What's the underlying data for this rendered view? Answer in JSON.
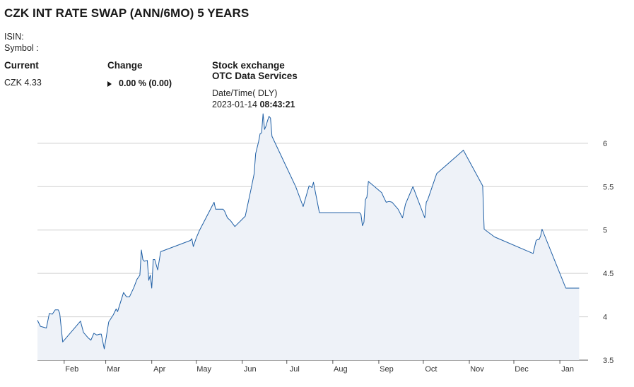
{
  "title": "CZK INT RATE SWAP (ANN/6MO) 5 YEARS",
  "isin_label": "ISIN:",
  "symbol_label": "Symbol :",
  "current": {
    "label": "Current",
    "value": "CZK 4.33"
  },
  "change": {
    "label": "Change",
    "value": "0.00 % (0.00)"
  },
  "exchange": {
    "label": "Stock exchange",
    "name": "OTC Data Services"
  },
  "datetime": {
    "label": "Date/Time( DLY)",
    "date": "2023-01-14",
    "time": "08:43:21"
  },
  "chart_data": {
    "type": "area",
    "title": "",
    "xlabel": "",
    "ylabel": "",
    "ylim": [
      3.5,
      6.3
    ],
    "yticks": [
      "3.5",
      "4",
      "4.5",
      "5",
      "5.5",
      "6"
    ],
    "xticks": [
      "Feb",
      "Mar",
      "Apr",
      "May",
      "Jun",
      "Jul",
      "Aug",
      "Sep",
      "Oct",
      "Nov",
      "Dec",
      "Jan"
    ],
    "grid": true,
    "line_color": "#1f5fa5",
    "fill_color": "#eef2f8",
    "series": [
      {
        "values": [
          [
            "2022-01-14",
            3.96
          ],
          [
            "2022-01-16",
            3.89
          ],
          [
            "2022-01-20",
            3.87
          ],
          [
            "2022-01-22",
            4.04
          ],
          [
            "2022-01-24",
            4.03
          ],
          [
            "2022-01-26",
            4.08
          ],
          [
            "2022-01-28",
            4.08
          ],
          [
            "2022-01-29",
            4.04
          ],
          [
            "2022-01-31",
            3.71
          ],
          [
            "2022-02-12",
            3.95
          ],
          [
            "2022-02-14",
            3.82
          ],
          [
            "2022-02-17",
            3.76
          ],
          [
            "2022-02-19",
            3.73
          ],
          [
            "2022-02-21",
            3.81
          ],
          [
            "2022-02-23",
            3.79
          ],
          [
            "2022-02-25",
            3.8
          ],
          [
            "2022-02-26",
            3.8
          ],
          [
            "2022-02-28",
            3.63
          ],
          [
            "2022-03-01",
            3.73
          ],
          [
            "2022-03-03",
            3.94
          ],
          [
            "2022-03-06",
            4.02
          ],
          [
            "2022-03-08",
            4.09
          ],
          [
            "2022-03-09",
            4.06
          ],
          [
            "2022-03-11",
            4.17
          ],
          [
            "2022-03-13",
            4.28
          ],
          [
            "2022-03-15",
            4.23
          ],
          [
            "2022-03-17",
            4.23
          ],
          [
            "2022-03-20",
            4.34
          ],
          [
            "2022-03-22",
            4.43
          ],
          [
            "2022-03-24",
            4.48
          ],
          [
            "2022-03-25",
            4.77
          ],
          [
            "2022-03-26",
            4.66
          ],
          [
            "2022-03-27",
            4.64
          ],
          [
            "2022-03-29",
            4.65
          ],
          [
            "2022-03-30",
            4.42
          ],
          [
            "2022-03-31",
            4.48
          ],
          [
            "2022-04-01",
            4.33
          ],
          [
            "2022-04-02",
            4.66
          ],
          [
            "2022-04-03",
            4.66
          ],
          [
            "2022-04-05",
            4.54
          ],
          [
            "2022-04-07",
            4.75
          ],
          [
            "2022-04-27",
            4.88
          ],
          [
            "2022-04-28",
            4.9
          ],
          [
            "2022-04-29",
            4.81
          ],
          [
            "2022-05-01",
            4.91
          ],
          [
            "2022-05-03",
            4.99
          ],
          [
            "2022-05-13",
            5.32
          ],
          [
            "2022-05-14",
            5.24
          ],
          [
            "2022-05-15",
            5.24
          ],
          [
            "2022-05-17",
            5.24
          ],
          [
            "2022-05-19",
            5.24
          ],
          [
            "2022-05-20",
            5.22
          ],
          [
            "2022-05-22",
            5.14
          ],
          [
            "2022-05-24",
            5.11
          ],
          [
            "2022-05-27",
            5.04
          ],
          [
            "2022-06-03",
            5.16
          ],
          [
            "2022-06-07",
            5.48
          ],
          [
            "2022-06-09",
            5.65
          ],
          [
            "2022-06-10",
            5.88
          ],
          [
            "2022-06-12",
            6.02
          ],
          [
            "2022-06-13",
            6.11
          ],
          [
            "2022-06-14",
            6.12
          ],
          [
            "2022-06-15",
            6.34
          ],
          [
            "2022-06-16",
            6.16
          ],
          [
            "2022-06-17",
            6.2
          ],
          [
            "2022-06-18",
            6.26
          ],
          [
            "2022-06-19",
            6.31
          ],
          [
            "2022-06-20",
            6.29
          ],
          [
            "2022-06-21",
            6.08
          ],
          [
            "2022-07-07",
            5.5
          ],
          [
            "2022-07-12",
            5.27
          ],
          [
            "2022-07-16",
            5.51
          ],
          [
            "2022-07-18",
            5.49
          ],
          [
            "2022-07-19",
            5.55
          ],
          [
            "2022-07-23",
            5.2
          ],
          [
            "2022-08-19",
            5.2
          ],
          [
            "2022-08-20",
            5.18
          ],
          [
            "2022-08-21",
            5.05
          ],
          [
            "2022-08-22",
            5.09
          ],
          [
            "2022-08-23",
            5.35
          ],
          [
            "2022-08-24",
            5.38
          ],
          [
            "2022-08-25",
            5.56
          ],
          [
            "2022-09-03",
            5.43
          ],
          [
            "2022-09-04",
            5.39
          ],
          [
            "2022-09-06",
            5.32
          ],
          [
            "2022-09-08",
            5.33
          ],
          [
            "2022-09-10",
            5.32
          ],
          [
            "2022-09-14",
            5.24
          ],
          [
            "2022-09-17",
            5.14
          ],
          [
            "2022-09-19",
            5.3
          ],
          [
            "2022-09-24",
            5.5
          ],
          [
            "2022-10-02",
            5.14
          ],
          [
            "2022-10-03",
            5.32
          ],
          [
            "2022-10-04",
            5.35
          ],
          [
            "2022-10-10",
            5.65
          ],
          [
            "2022-10-28",
            5.92
          ],
          [
            "2022-11-10",
            5.51
          ],
          [
            "2022-11-11",
            5.01
          ],
          [
            "2022-11-18",
            4.92
          ],
          [
            "2022-12-14",
            4.73
          ],
          [
            "2022-12-16",
            4.88
          ],
          [
            "2022-12-17",
            4.89
          ],
          [
            "2022-12-18",
            4.89
          ],
          [
            "2022-12-19",
            4.93
          ],
          [
            "2022-12-20",
            5.01
          ],
          [
            "2023-01-05",
            4.33
          ],
          [
            "2023-01-14",
            4.33
          ]
        ]
      }
    ]
  }
}
